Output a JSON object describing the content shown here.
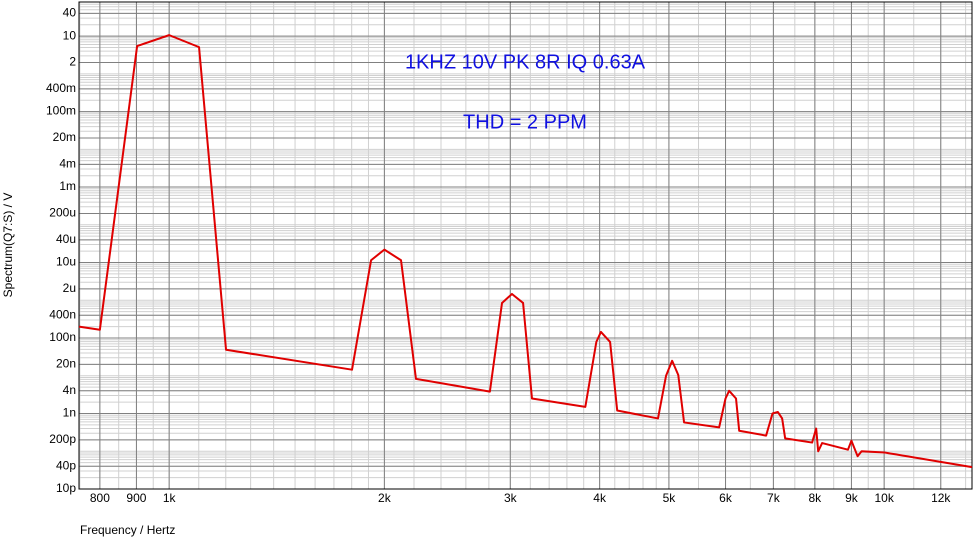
{
  "chart_data": {
    "type": "line",
    "annotations": [
      "1KHZ 10V PK 8R IQ 0.63A",
      "THD = 2 PPM"
    ],
    "xlabel": "Frequency / Hertz",
    "ylabel": "Spectrum(Q7:S) / V",
    "color": "#e00000",
    "xlog": true,
    "ylog": true,
    "grid": true,
    "minor_grid": true,
    "xlim": [
      748,
      13270
    ],
    "ylim": [
      1e-11,
      80
    ],
    "xticks": [
      800,
      900,
      {
        "value": 1000,
        "label": "1k"
      },
      {
        "value": 2000,
        "label": "2k"
      },
      {
        "value": 3000,
        "label": "3k"
      },
      {
        "value": 4000,
        "label": "4k"
      },
      {
        "value": 5000,
        "label": "5k"
      },
      {
        "value": 6000,
        "label": "6k"
      },
      {
        "value": 7000,
        "label": "7k"
      },
      {
        "value": 8000,
        "label": "8k"
      },
      {
        "value": 9000,
        "label": "9k"
      },
      {
        "value": 10000,
        "label": "10k"
      },
      {
        "value": 12000,
        "label": "12k"
      }
    ],
    "yticks": [
      40,
      10,
      2,
      {
        "value": 0.4,
        "label": "400m"
      },
      {
        "value": 0.1,
        "label": "100m"
      },
      {
        "value": 0.02,
        "label": "20m"
      },
      {
        "value": 0.004,
        "label": "4m"
      },
      {
        "value": 0.001,
        "label": "1m"
      },
      {
        "value": 0.0002,
        "label": "200u"
      },
      {
        "value": 4e-05,
        "label": "40u"
      },
      {
        "value": 1e-05,
        "label": "10u"
      },
      {
        "value": 2e-06,
        "label": "2u"
      },
      {
        "value": 4e-07,
        "label": "400n"
      },
      {
        "value": 1e-07,
        "label": "100n"
      },
      {
        "value": 2e-08,
        "label": "20n"
      },
      {
        "value": 4e-09,
        "label": "4n"
      },
      {
        "value": 1e-09,
        "label": "1n"
      },
      {
        "value": 2e-10,
        "label": "200p"
      },
      {
        "value": 4e-11,
        "label": "40p"
      },
      {
        "value": 1e-11,
        "label": "10p"
      }
    ],
    "x": [
      748,
      800,
      902,
      1000,
      1101,
      1201,
      1802,
      1916,
      2000,
      2110,
      2214,
      2809,
      2921,
      3016,
      3126,
      3217,
      3820,
      3958,
      4017,
      4137,
      4233,
      4827,
      4954,
      5052,
      5153,
      5250,
      5878,
      6000,
      6070,
      6206,
      6270,
      6838,
      6980,
      7100,
      7200,
      7270,
      7930,
      8034,
      8086,
      8190,
      8900,
      9000,
      9180,
      9300,
      10000,
      13270
    ],
    "values": [
      2e-07,
      1.66e-07,
      5.45,
      10.6,
      5.1,
      4.9e-08,
      1.45e-08,
      1.15e-05,
      2.2e-05,
      1.15e-05,
      8.3e-09,
      3.8e-09,
      8.5e-07,
      1.47e-06,
      8.5e-07,
      2.5e-09,
      1.5e-09,
      7.9e-08,
      1.45e-07,
      7.9e-08,
      1.2e-09,
      7.4e-10,
      1e-08,
      2.5e-08,
      1.05e-08,
      5.8e-10,
      4.3e-10,
      2.5e-09,
      4e-09,
      2.5e-09,
      3.5e-10,
      2.6e-10,
      1e-09,
      1.1e-09,
      7.4e-10,
      2.2e-10,
      1.7e-10,
      4e-10,
      1e-10,
      1.65e-10,
      1.1e-10,
      1.9e-10,
      7.4e-11,
      1e-10,
      9.3e-11,
      3.8e-11
    ]
  }
}
